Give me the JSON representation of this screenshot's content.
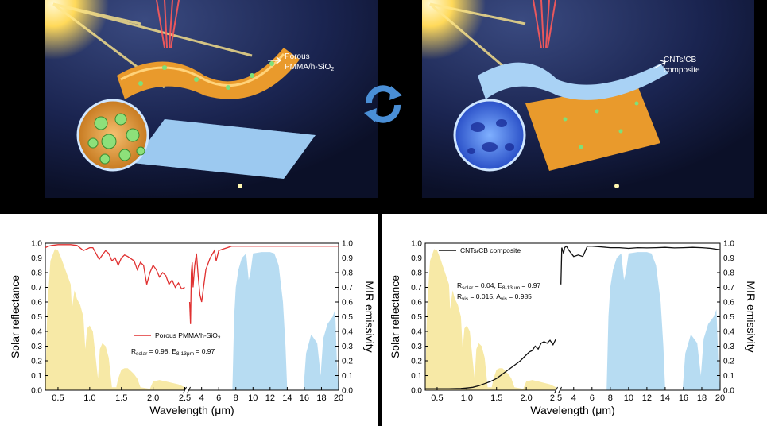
{
  "illustrations": {
    "left_label_line1": "Porous",
    "left_label_line2": "PMMA/h-SiO",
    "left_label_sub": "2",
    "right_label_line1": "CNTs/CB",
    "right_label_line2": "composite",
    "switch_icon": "cycle-arrows-icon",
    "colors": {
      "sun": "#ffe07a",
      "laser": "#ff5050",
      "orange_film": "#f0a030",
      "blue_film": "#8fc4f0",
      "switch": "#4a8fd6"
    }
  },
  "chart_data": [
    {
      "type": "line",
      "xlabel": "Wavelength (μm)",
      "ylabel_left": "Solar reflectance",
      "ylabel_right": "MIR emissivity",
      "ylim": [
        0,
        1.0
      ],
      "y_ticks": [
        "0.0",
        "0.1",
        "0.2",
        "0.3",
        "0.4",
        "0.5",
        "0.6",
        "0.7",
        "0.8",
        "0.9",
        "1.0"
      ],
      "x_ticks": [
        "0.5",
        "1.0",
        "1.5",
        "2.0",
        "2.5",
        "4",
        "6",
        "8",
        "10",
        "12",
        "14",
        "16",
        "18",
        "20"
      ],
      "axis_break": "broken x-axis between 2.5 and 2.5 μm (solar segment 0.3–2.5 μm, MIR segment 2.5–20 μm)",
      "legend": "Porous PMMA/h-SiO2",
      "legend_main": "Porous PMMA/h-SiO",
      "legend_sub": "2",
      "annotation": {
        "R_label": "R",
        "R_sub": "solar",
        "R_val": " = 0.98, E",
        "E_sub": "8-13μm",
        "E_val": " = 0.97"
      },
      "line_color": "#e03030",
      "series": [
        {
          "name": "Porous PMMA/h-SiO2",
          "segment": "solar",
          "x": [
            0.3,
            0.35,
            0.4,
            0.5,
            0.6,
            0.7,
            0.8,
            0.9,
            1.0,
            1.05,
            1.1,
            1.15,
            1.2,
            1.25,
            1.3,
            1.35,
            1.4,
            1.45,
            1.5,
            1.55,
            1.6,
            1.7,
            1.75,
            1.8,
            1.85,
            1.9,
            1.95,
            2.0,
            2.05,
            2.1,
            2.15,
            2.2,
            2.25,
            2.3,
            2.35,
            2.4,
            2.45,
            2.5
          ],
          "y": [
            0.97,
            0.98,
            0.985,
            0.99,
            0.99,
            0.99,
            0.985,
            0.95,
            0.97,
            0.97,
            0.93,
            0.89,
            0.92,
            0.95,
            0.93,
            0.88,
            0.9,
            0.85,
            0.9,
            0.92,
            0.91,
            0.88,
            0.82,
            0.87,
            0.85,
            0.72,
            0.8,
            0.85,
            0.82,
            0.77,
            0.8,
            0.78,
            0.72,
            0.75,
            0.7,
            0.73,
            0.69,
            0.7
          ]
        },
        {
          "name": "Porous PMMA/h-SiO2",
          "segment": "MIR",
          "x": [
            2.6,
            2.7,
            2.8,
            2.9,
            3.0,
            3.2,
            3.4,
            3.6,
            3.8,
            4.0,
            4.5,
            5.0,
            5.5,
            5.7,
            6.0,
            6.5,
            7.0,
            7.5,
            8,
            9,
            10,
            11,
            12,
            13,
            14,
            16,
            18,
            20
          ],
          "y": [
            0.6,
            0.45,
            0.8,
            0.87,
            0.7,
            0.85,
            0.93,
            0.78,
            0.65,
            0.6,
            0.82,
            0.9,
            0.95,
            0.88,
            0.95,
            0.96,
            0.97,
            0.98,
            0.98,
            0.98,
            0.98,
            0.98,
            0.98,
            0.98,
            0.98,
            0.98,
            0.98,
            0.98
          ]
        }
      ]
    },
    {
      "type": "line",
      "xlabel": "Wavelength (μm)",
      "ylabel_left": "Solar reflectance",
      "ylabel_right": "MIR emissivity",
      "ylim": [
        0,
        1.0
      ],
      "y_ticks": [
        "0.0",
        "0.1",
        "0.2",
        "0.3",
        "0.4",
        "0.5",
        "0.6",
        "0.7",
        "0.8",
        "0.9",
        "1.0"
      ],
      "x_ticks": [
        "0.5",
        "1.0",
        "1.5",
        "2.0",
        "2.5",
        "4",
        "6",
        "8",
        "10",
        "12",
        "14",
        "16",
        "18",
        "20"
      ],
      "legend": "CNTs/CB composite",
      "annotation1": {
        "R_label": "R",
        "R_sub": "solar",
        "R_val": " = 0.04, E",
        "E_sub": "8-13μm",
        "E_val": " = 0.97"
      },
      "annotation2": {
        "R_label": "R",
        "R_sub": "vis",
        "R_val": " = 0.015, A",
        "A_sub": "vis",
        "A_val": " = 0.985"
      },
      "line_color": "#111111",
      "series": [
        {
          "name": "CNTs/CB composite",
          "segment": "solar",
          "x": [
            0.3,
            0.5,
            0.7,
            0.9,
            1.0,
            1.1,
            1.2,
            1.3,
            1.4,
            1.5,
            1.6,
            1.7,
            1.8,
            1.9,
            2.0,
            2.05,
            2.1,
            2.15,
            2.2,
            2.25,
            2.3,
            2.35,
            2.4,
            2.45,
            2.5
          ],
          "y": [
            0.01,
            0.01,
            0.01,
            0.012,
            0.015,
            0.02,
            0.03,
            0.045,
            0.06,
            0.08,
            0.11,
            0.14,
            0.17,
            0.2,
            0.24,
            0.26,
            0.27,
            0.3,
            0.28,
            0.32,
            0.33,
            0.32,
            0.34,
            0.31,
            0.35
          ]
        },
        {
          "name": "CNTs/CB composite",
          "segment": "MIR",
          "x": [
            2.6,
            2.7,
            2.8,
            2.9,
            3.0,
            3.2,
            3.5,
            4.0,
            4.5,
            5.0,
            5.5,
            6.0,
            7,
            8,
            9,
            10,
            11,
            12,
            13,
            14,
            15,
            16,
            17,
            18,
            19,
            20
          ],
          "y": [
            0.72,
            0.97,
            0.95,
            0.93,
            0.97,
            0.98,
            0.95,
            0.91,
            0.92,
            0.91,
            0.98,
            0.98,
            0.975,
            0.97,
            0.97,
            0.965,
            0.97,
            0.968,
            0.97,
            0.972,
            0.968,
            0.97,
            0.972,
            0.97,
            0.965,
            0.955
          ]
        }
      ]
    }
  ],
  "spectra": {
    "solar_fill": "#f7e9a6",
    "mir_fill": "#b7dcf2"
  }
}
